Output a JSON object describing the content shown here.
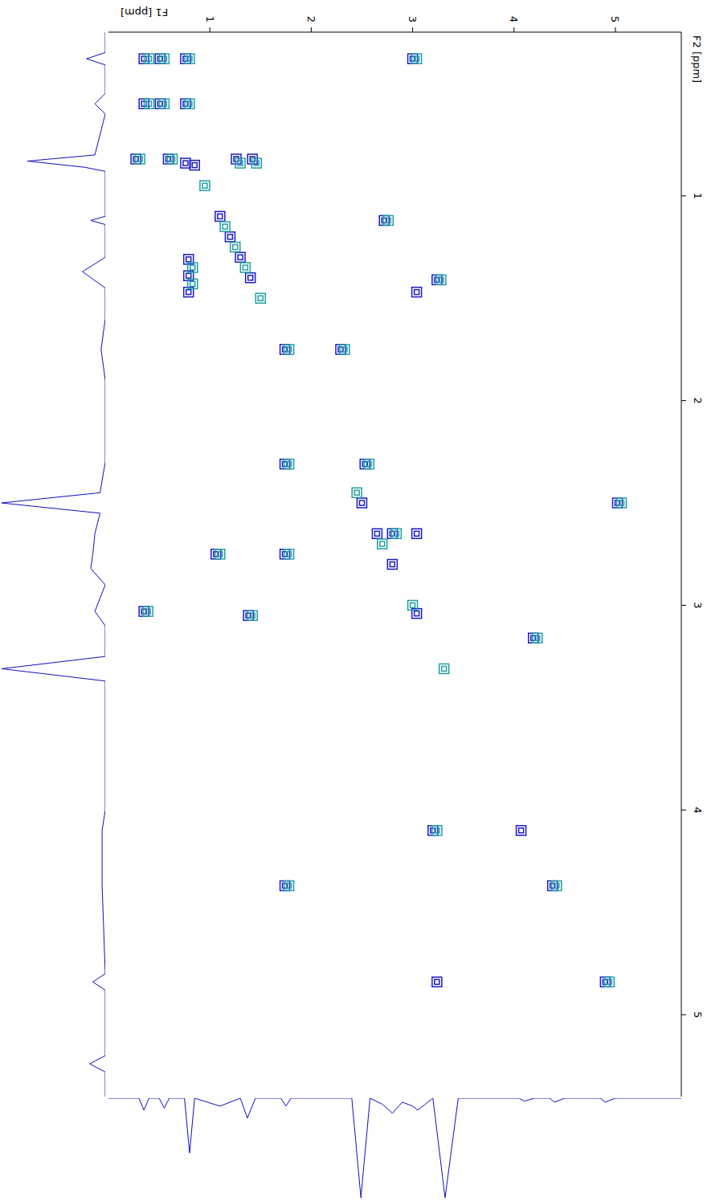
{
  "chart_data": [
    {
      "type": "scatter",
      "xlabel": "F1 [ppm]",
      "ylabel": "F2 [ppm]",
      "xlim": [
        0,
        5.65
      ],
      "xticks": [
        1,
        2,
        3,
        4,
        5
      ],
      "ylim": [
        0.2,
        5.4
      ],
      "yticks": [
        1,
        2,
        3,
        4,
        5
      ],
      "marker": "square",
      "series": [
        {
          "color": "#1a1acc",
          "x": [
            0.35,
            0.51,
            0.76,
            3.0,
            0.35,
            0.51,
            0.76,
            0.27,
            0.59,
            0.76,
            1.26,
            1.42,
            2.72,
            0.79,
            0.79,
            0.79,
            3.04,
            3.24,
            1.74,
            2.29,
            1.74,
            2.53,
            5.02,
            1.06,
            1.74,
            2.8,
            3.04,
            0.35,
            1.38,
            4.19,
            3.2,
            4.07,
            1.74,
            4.38,
            3.24,
            4.9,
            0.85,
            1.1,
            1.2,
            1.3,
            1.4,
            2.5,
            2.65,
            2.8,
            3.04
          ],
          "y": [
            0.33,
            0.33,
            0.33,
            0.33,
            0.55,
            0.55,
            0.55,
            0.82,
            0.82,
            0.84,
            0.82,
            0.82,
            1.12,
            1.31,
            1.39,
            1.47,
            1.47,
            1.41,
            1.75,
            1.75,
            2.31,
            2.31,
            2.5,
            2.75,
            2.75,
            2.65,
            2.65,
            3.03,
            3.05,
            3.16,
            4.1,
            4.1,
            4.37,
            4.37,
            4.84,
            4.84,
            0.85,
            1.1,
            1.2,
            1.3,
            1.4,
            2.5,
            2.65,
            2.8,
            3.04
          ]
        },
        {
          "color": "#20a0a0",
          "x": [
            0.4,
            0.55,
            0.8,
            3.04,
            0.4,
            0.55,
            0.8,
            0.31,
            0.63,
            1.3,
            1.46,
            2.76,
            0.83,
            0.83,
            3.28,
            1.78,
            2.33,
            1.78,
            2.57,
            5.06,
            1.1,
            1.78,
            2.84,
            0.39,
            1.42,
            4.23,
            3.24,
            1.78,
            4.42,
            4.94,
            0.95,
            1.15,
            1.25,
            1.35,
            1.5,
            2.45,
            2.7,
            3.0,
            3.31
          ],
          "y": [
            0.33,
            0.33,
            0.33,
            0.33,
            0.55,
            0.55,
            0.55,
            0.82,
            0.82,
            0.84,
            0.84,
            1.12,
            1.35,
            1.43,
            1.41,
            1.75,
            1.75,
            2.31,
            2.31,
            2.5,
            2.75,
            2.75,
            2.65,
            3.03,
            3.05,
            3.16,
            4.1,
            4.37,
            4.37,
            4.84,
            0.95,
            1.15,
            1.25,
            1.35,
            1.5,
            2.45,
            2.7,
            3.0,
            3.31
          ]
        }
      ]
    },
    {
      "type": "line",
      "orientation": "horizontal",
      "tick_labels": false,
      "color": "#1010c0",
      "xlim": [
        0,
        100
      ],
      "ylim": [
        0.2,
        5.4
      ],
      "x": [
        0.2,
        0.3,
        0.33,
        0.36,
        0.5,
        0.55,
        0.6,
        0.8,
        0.83,
        0.86,
        0.88,
        0.95,
        1.1,
        1.12,
        1.14,
        1.3,
        1.37,
        1.45,
        1.6,
        1.75,
        1.9,
        2.3,
        2.45,
        2.5,
        2.55,
        2.65,
        2.75,
        2.82,
        2.9,
        3.03,
        3.1,
        3.25,
        3.31,
        3.37,
        3.5,
        4.0,
        4.1,
        4.37,
        4.8,
        4.84,
        4.88,
        5.0,
        5.2,
        5.24,
        5.28,
        5.4
      ],
      "values": [
        0,
        0,
        18,
        0,
        0,
        10,
        0,
        10,
        75,
        20,
        0,
        0,
        0,
        14,
        0,
        0,
        22,
        0,
        0,
        4,
        0,
        0,
        5,
        100,
        5,
        10,
        12,
        14,
        0,
        10,
        0,
        0,
        100,
        0,
        0,
        0,
        3,
        3,
        0,
        12,
        0,
        0,
        0,
        15,
        0,
        0
      ]
    },
    {
      "type": "line",
      "tick_labels": false,
      "color": "#1010c0",
      "xlim": [
        0,
        5.65
      ],
      "ylim": [
        0,
        100
      ],
      "x": [
        0.0,
        0.3,
        0.35,
        0.4,
        0.5,
        0.55,
        0.6,
        0.75,
        0.8,
        0.85,
        1.1,
        1.3,
        1.37,
        1.45,
        1.7,
        1.75,
        1.8,
        2.4,
        2.49,
        2.58,
        2.7,
        2.8,
        2.9,
        3.0,
        3.05,
        3.2,
        3.32,
        3.45,
        3.6,
        4.05,
        4.1,
        4.2,
        4.35,
        4.4,
        4.5,
        4.85,
        4.9,
        5.0,
        5.3,
        5.65
      ],
      "values": [
        0,
        0,
        12,
        0,
        0,
        10,
        0,
        0,
        55,
        0,
        8,
        0,
        20,
        0,
        0,
        8,
        0,
        0,
        100,
        0,
        6,
        15,
        4,
        8,
        12,
        0,
        100,
        0,
        0,
        0,
        3,
        0,
        0,
        4,
        0,
        0,
        4,
        0,
        0,
        0
      ]
    }
  ]
}
